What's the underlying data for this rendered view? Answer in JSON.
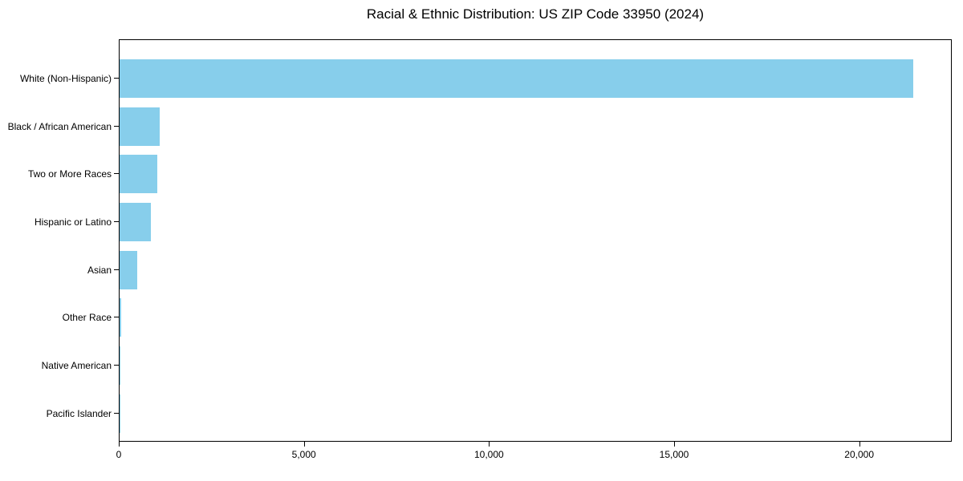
{
  "chart_data": {
    "type": "bar",
    "orientation": "horizontal",
    "title": "Racial & Ethnic Distribution: US ZIP Code 33950 (2024)",
    "xlabel": "",
    "ylabel": "",
    "categories": [
      "White (Non-Hispanic)",
      "Black / African American",
      "Two or More Races",
      "Hispanic or Latino",
      "Asian",
      "Other Race",
      "Native American",
      "Pacific Islander"
    ],
    "values": [
      21430,
      1080,
      1020,
      855,
      480,
      40,
      15,
      5
    ],
    "xlim": [
      0,
      22500
    ],
    "x_ticks": [
      0,
      5000,
      10000,
      15000,
      20000
    ],
    "x_tick_labels": [
      "0",
      "5,000",
      "10,000",
      "15,000",
      "20,000"
    ],
    "bar_color": "#87CEEB",
    "axis_color": "#000000",
    "text_color": "#000000",
    "grid": false,
    "legend": null
  }
}
